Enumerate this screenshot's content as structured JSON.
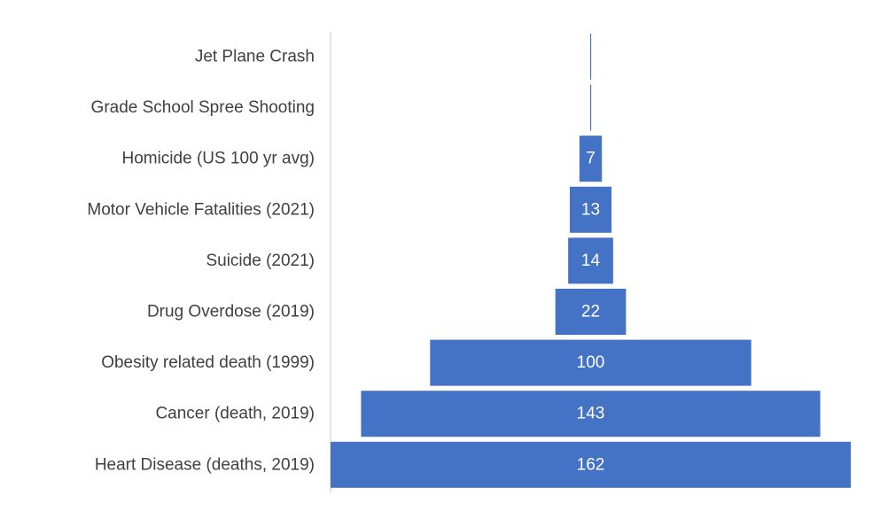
{
  "chart_data": {
    "type": "bar",
    "orientation": "horizontal",
    "style": "funnel",
    "categories": [
      "Jet Plane Crash",
      "Grade School Spree Shooting",
      "Homicide (US 100 yr avg)",
      "Motor Vehicle Fatalities (2021)",
      "Suicide (2021)",
      "Drug Overdose (2019)",
      "Obesity related death (1999)",
      "Cancer (death, 2019)",
      "Heart Disease (deaths, 2019)"
    ],
    "values": [
      0.1,
      0.1,
      7,
      13,
      14,
      22,
      100,
      143,
      162
    ],
    "data_labels": [
      "",
      "",
      "7",
      "13",
      "14",
      "22",
      "100",
      "143",
      "162"
    ],
    "title": "",
    "xlabel": "",
    "ylabel": "",
    "xlim": [
      0,
      162
    ],
    "grid": false,
    "legend": "none",
    "colors": {
      "bar": "#4472C4",
      "label_text": "#404040",
      "data_label_text": "#ffffff",
      "axis_line": "#d9d9d9"
    }
  }
}
